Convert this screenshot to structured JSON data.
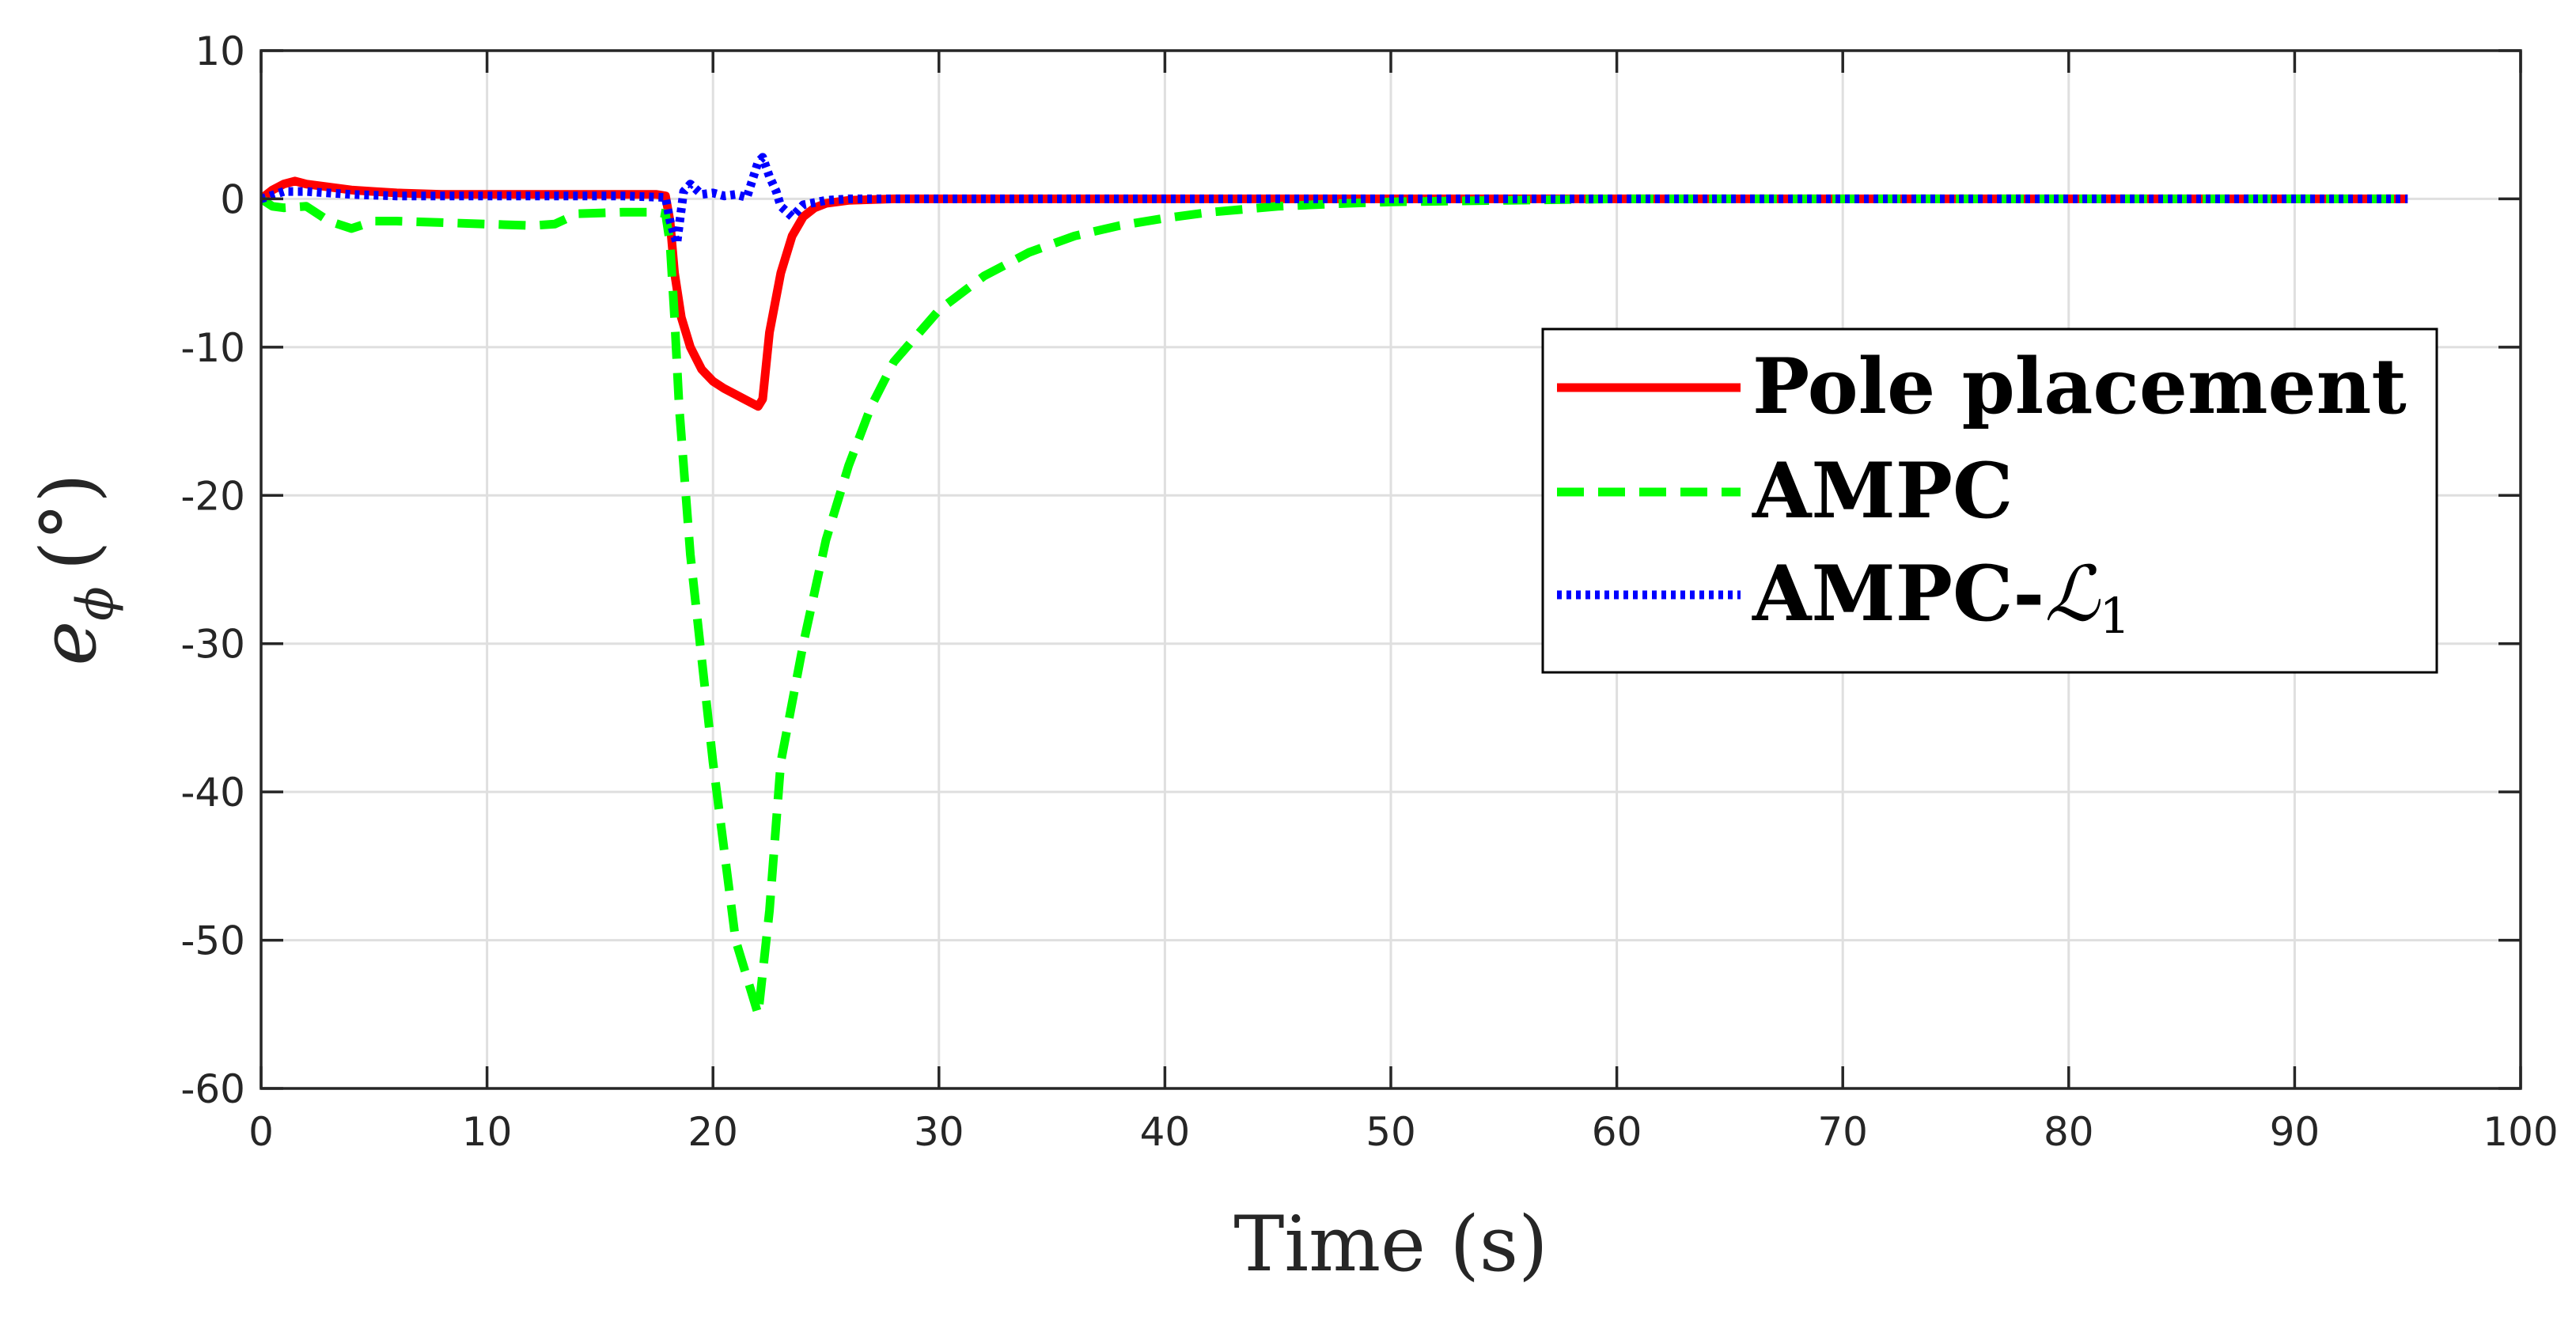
{
  "chart_data": {
    "type": "line",
    "title": "",
    "xlabel": "Time (s)",
    "ylabel": "e",
    "ylabel_subscript": "ϕ",
    "ylabel_unit": "(°)",
    "xlim": [
      0,
      100
    ],
    "ylim": [
      -60,
      10
    ],
    "xticks": [
      0,
      10,
      20,
      30,
      40,
      50,
      60,
      70,
      80,
      90,
      100
    ],
    "yticks": [
      10,
      0,
      -10,
      -20,
      -30,
      -40,
      -50,
      -60
    ],
    "xtick_labels": [
      "0",
      "10",
      "20",
      "30",
      "40",
      "50",
      "60",
      "70",
      "80",
      "90",
      "100"
    ],
    "ytick_labels": [
      "10",
      "0",
      "-10",
      "-20",
      "-30",
      "-40",
      "-50",
      "-60"
    ],
    "grid": true,
    "legend_position": "right",
    "series": [
      {
        "name": "Pole placement",
        "label_main": "Pole placement",
        "label_sub": "",
        "color": "#ff0000",
        "dash": "solid",
        "x": [
          0,
          0.5,
          1,
          1.5,
          2,
          3,
          4,
          5,
          6,
          8,
          10,
          12,
          14,
          16,
          17.5,
          17.9,
          18.1,
          18.3,
          18.6,
          19,
          19.5,
          20,
          20.5,
          21,
          21.5,
          22,
          22.2,
          22.5,
          23,
          23.5,
          24,
          24.5,
          25,
          26,
          28,
          30,
          40,
          50,
          60,
          70,
          80,
          90,
          95
        ],
        "y": [
          0,
          0.6,
          1.0,
          1.2,
          1.0,
          0.8,
          0.6,
          0.5,
          0.4,
          0.3,
          0.3,
          0.3,
          0.3,
          0.3,
          0.3,
          0.2,
          -1.5,
          -5,
          -8,
          -10,
          -11.5,
          -12.3,
          -12.8,
          -13.2,
          -13.6,
          -14.0,
          -13.5,
          -9,
          -5,
          -2.5,
          -1.2,
          -0.6,
          -0.3,
          -0.1,
          0,
          0,
          0,
          0,
          0,
          0,
          0,
          0,
          0
        ]
      },
      {
        "name": "AMPC",
        "label_main": "AMPC",
        "label_sub": "",
        "color": "#00ff00",
        "dash": "dashed",
        "x": [
          0,
          0.5,
          1,
          2,
          3,
          4,
          5,
          6,
          8,
          10,
          12,
          13,
          14,
          16,
          17.5,
          17.9,
          18.1,
          18.3,
          18.5,
          19,
          20,
          21,
          22,
          22.5,
          23,
          24,
          25,
          26,
          27,
          28,
          30,
          32,
          34,
          36,
          38,
          40,
          42,
          45,
          48,
          50,
          55,
          60,
          70,
          80,
          90,
          95
        ],
        "y": [
          0,
          -0.5,
          -0.6,
          -0.5,
          -1.5,
          -2.0,
          -1.5,
          -1.5,
          -1.6,
          -1.7,
          -1.8,
          -1.7,
          -1.0,
          -0.9,
          -0.9,
          -1.0,
          -3,
          -8,
          -14,
          -24,
          -38,
          -50,
          -55,
          -48,
          -38,
          -30,
          -23,
          -18,
          -14,
          -11,
          -7.5,
          -5.2,
          -3.6,
          -2.5,
          -1.8,
          -1.3,
          -0.9,
          -0.5,
          -0.3,
          -0.2,
          -0.1,
          0,
          0,
          0,
          0,
          0
        ]
      },
      {
        "name": "AMPC-L1",
        "label_main": "AMPC-",
        "label_sub": "1",
        "color": "#0000ff",
        "dash": "dotted",
        "x": [
          0,
          1,
          2,
          4,
          6,
          8,
          10,
          12,
          14,
          16,
          17.9,
          18.1,
          18.4,
          18.7,
          19,
          19.5,
          20,
          20.5,
          21,
          21.5,
          22,
          22.2,
          22.5,
          22.8,
          23,
          23.5,
          24,
          25,
          26,
          28,
          30,
          40,
          50,
          60,
          70,
          80,
          90,
          95
        ],
        "y": [
          0,
          0.5,
          0.5,
          0.3,
          0.2,
          0.2,
          0.2,
          0.2,
          0.2,
          0.2,
          0.1,
          -1.5,
          -3.0,
          0.5,
          1.0,
          0.3,
          0.4,
          0.2,
          0.3,
          0.1,
          2.5,
          2.8,
          1.5,
          0.5,
          -0.5,
          -1.2,
          -0.4,
          -0.1,
          0,
          0,
          0,
          0,
          0,
          0,
          0,
          0,
          0,
          0
        ]
      }
    ]
  }
}
